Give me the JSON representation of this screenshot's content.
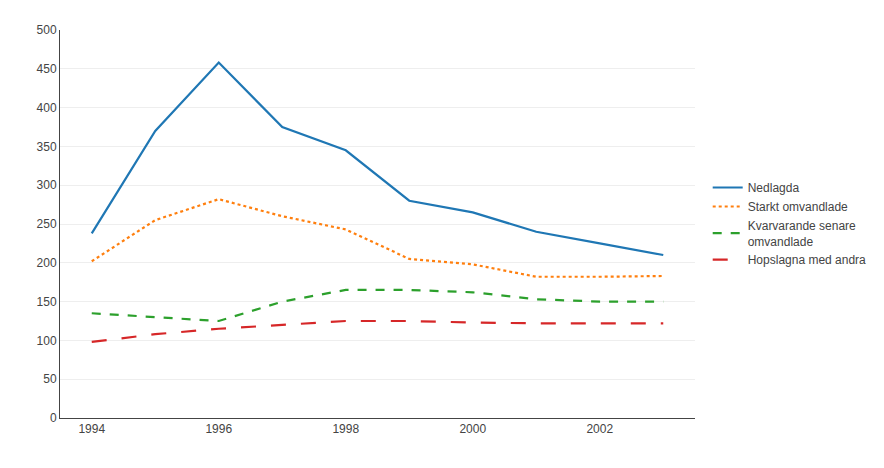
{
  "chart_data": {
    "type": "line",
    "x": [
      1994,
      1995,
      1996,
      1997,
      1998,
      1999,
      2000,
      2001,
      2002,
      2003
    ],
    "series": [
      {
        "name": "Nedlagda",
        "line_style": "solid",
        "values": [
          238,
          370,
          458,
          375,
          345,
          280,
          265,
          240,
          225,
          210
        ]
      },
      {
        "name": "Starkt omvandlade",
        "line_style": "dot",
        "values": [
          202,
          255,
          282,
          260,
          243,
          205,
          198,
          182,
          182,
          183
        ]
      },
      {
        "name": "Kvarvarande senare\nomvandlade",
        "line_style": "dash",
        "values": [
          135,
          130,
          125,
          150,
          165,
          165,
          162,
          153,
          150,
          150
        ]
      },
      {
        "name": "Hopslagna med andra",
        "line_style": "longdash",
        "values": [
          98,
          108,
          115,
          120,
          125,
          125,
          123,
          122,
          122,
          122
        ]
      }
    ],
    "xlim": [
      1993.5,
      2003.5
    ],
    "xticks": [
      1994,
      1996,
      1998,
      2000,
      2002
    ],
    "ylim": [
      0,
      500
    ],
    "yticks": [
      0,
      50,
      100,
      150,
      200,
      250,
      300,
      350,
      400,
      450,
      500
    ],
    "grid": "y",
    "legend": "right"
  }
}
